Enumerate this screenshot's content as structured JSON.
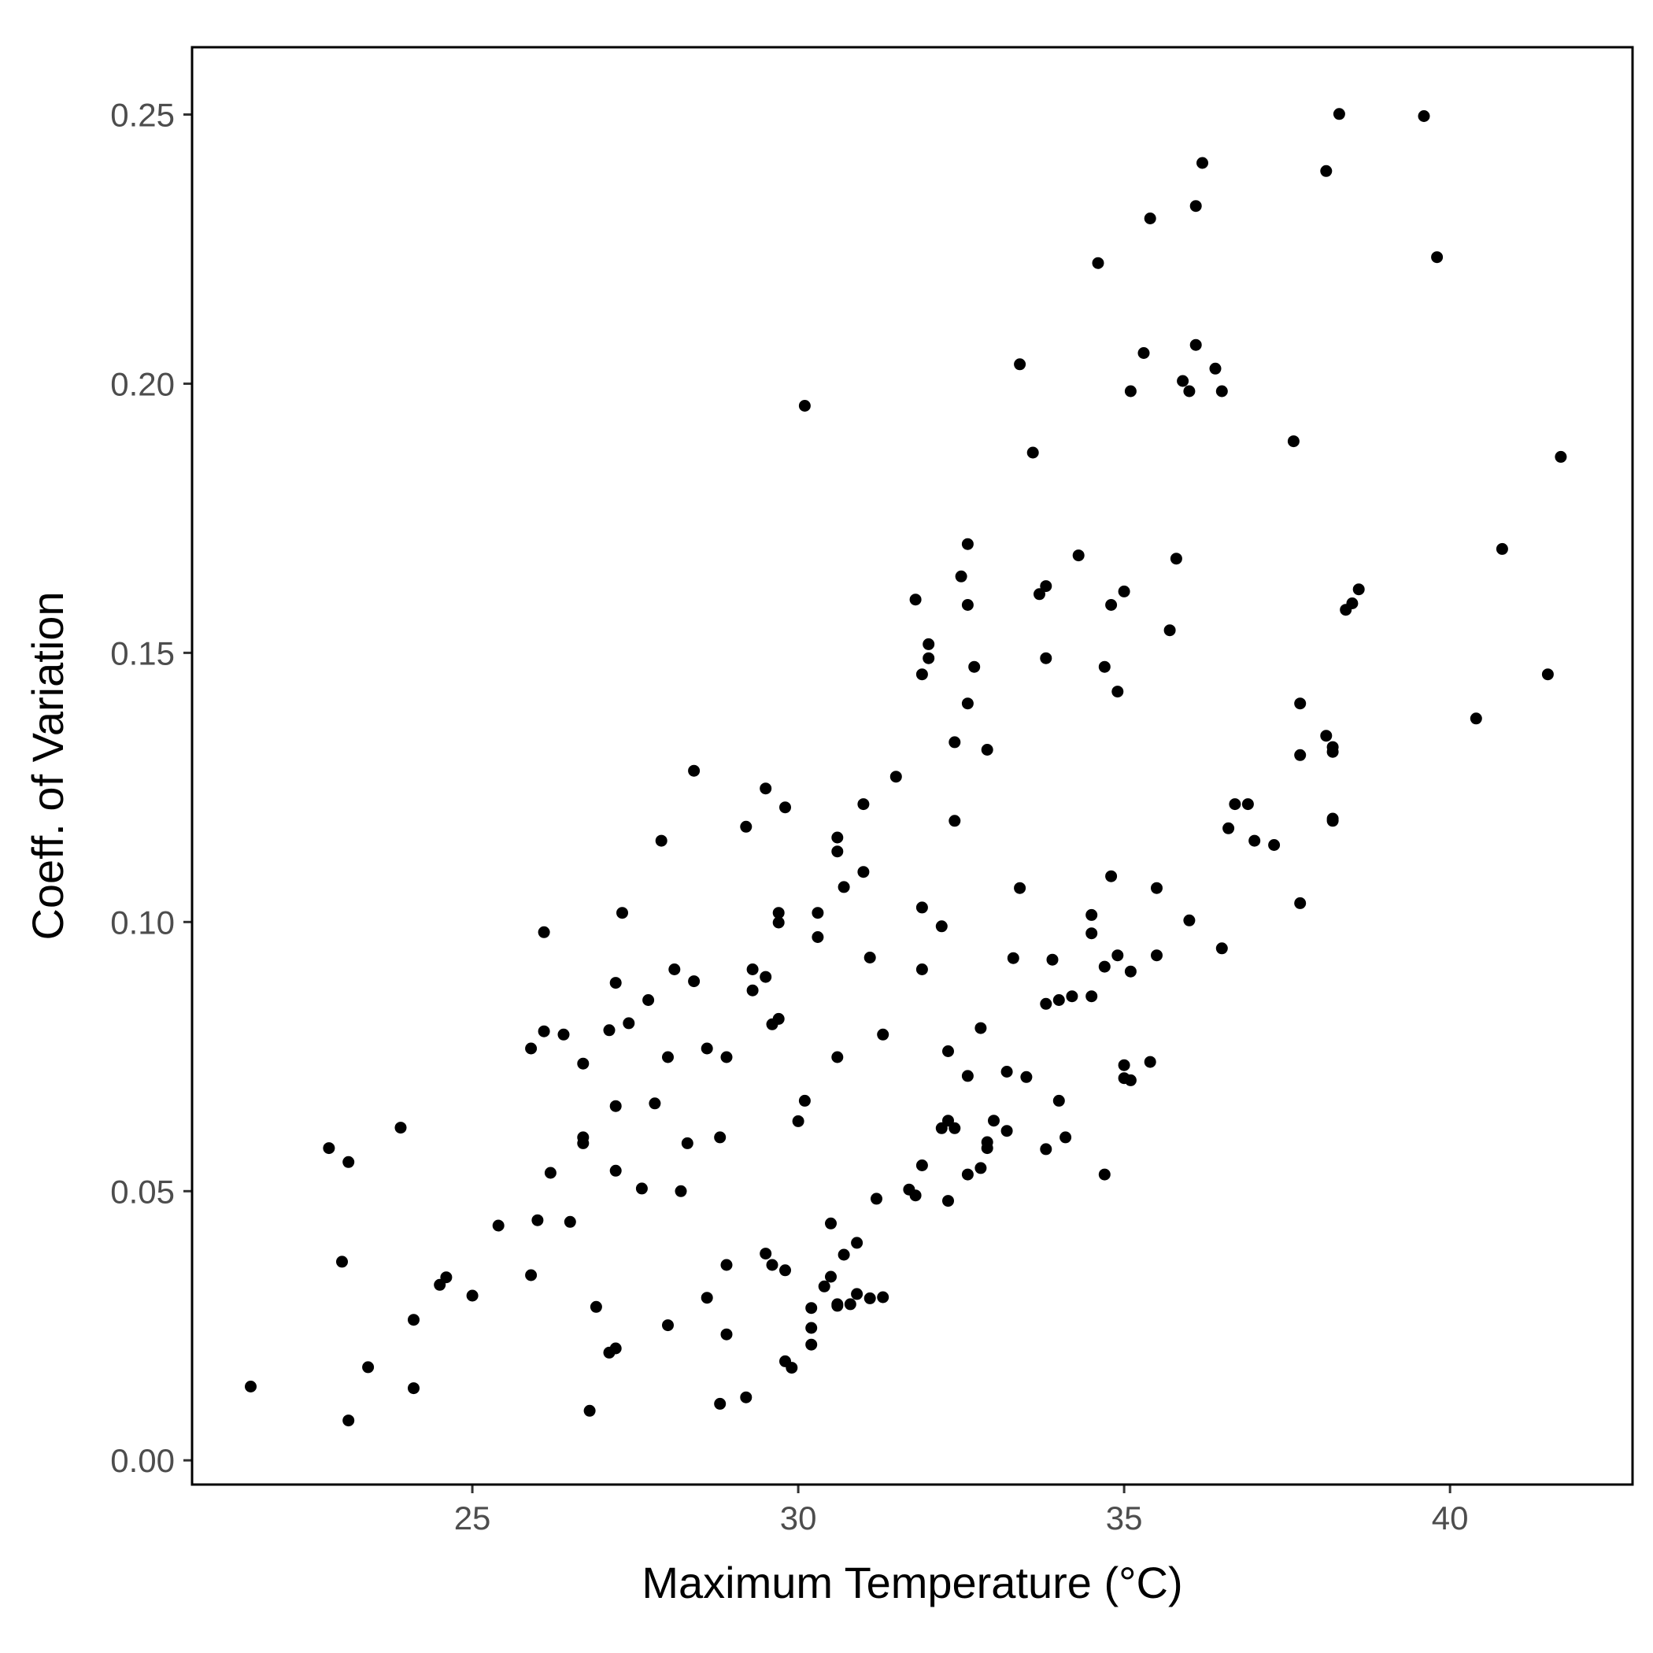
{
  "chart_data": {
    "type": "scatter",
    "title": "",
    "xlabel": "Maximum Temperature (°C)",
    "ylabel": "Coeff. of Variation",
    "xlim": [
      20.7,
      42.8
    ],
    "ylim": [
      -0.0045,
      0.2625
    ],
    "x_ticks": [
      25,
      30,
      35,
      40
    ],
    "x_tick_labels": [
      "25",
      "30",
      "35",
      "40"
    ],
    "y_ticks": [
      0.0,
      0.05,
      0.1,
      0.15,
      0.2,
      0.25
    ],
    "y_tick_labels": [
      "0.00",
      "0.05",
      "0.10",
      "0.15",
      "0.20",
      "0.25"
    ],
    "grid": false,
    "legend": "none",
    "point_color": "#000000",
    "series": [
      {
        "name": "",
        "points": [
          [
            21.6,
            0.0137
          ],
          [
            22.8,
            0.058
          ],
          [
            23.0,
            0.0369
          ],
          [
            23.1,
            0.0074
          ],
          [
            23.1,
            0.0554
          ],
          [
            23.4,
            0.0173
          ],
          [
            23.9,
            0.0618
          ],
          [
            24.1,
            0.0261
          ],
          [
            24.1,
            0.0134
          ],
          [
            24.5,
            0.0326
          ],
          [
            24.6,
            0.034
          ],
          [
            25.0,
            0.0306
          ],
          [
            25.4,
            0.0436
          ],
          [
            25.9,
            0.0765
          ],
          [
            25.9,
            0.0344
          ],
          [
            26.0,
            0.0446
          ],
          [
            26.1,
            0.0981
          ],
          [
            26.1,
            0.0797
          ],
          [
            26.2,
            0.0534
          ],
          [
            26.4,
            0.0791
          ],
          [
            26.5,
            0.0443
          ],
          [
            26.7,
            0.0589
          ],
          [
            26.7,
            0.06
          ],
          [
            26.7,
            0.0737
          ],
          [
            26.8,
            0.0092
          ],
          [
            26.9,
            0.0285
          ],
          [
            27.1,
            0.02
          ],
          [
            27.1,
            0.0799
          ],
          [
            27.2,
            0.0208
          ],
          [
            27.2,
            0.0538
          ],
          [
            27.2,
            0.0658
          ],
          [
            27.2,
            0.0887
          ],
          [
            27.3,
            0.1017
          ],
          [
            27.4,
            0.0812
          ],
          [
            27.6,
            0.0505
          ],
          [
            27.7,
            0.0855
          ],
          [
            27.8,
            0.0663
          ],
          [
            27.9,
            0.1151
          ],
          [
            28.0,
            0.0749
          ],
          [
            28.0,
            0.0251
          ],
          [
            28.1,
            0.0912
          ],
          [
            28.2,
            0.05
          ],
          [
            28.3,
            0.0589
          ],
          [
            28.4,
            0.089
          ],
          [
            28.4,
            0.1281
          ],
          [
            28.6,
            0.0765
          ],
          [
            28.6,
            0.0302
          ],
          [
            28.8,
            0.0105
          ],
          [
            28.8,
            0.06
          ],
          [
            28.9,
            0.0363
          ],
          [
            28.9,
            0.0234
          ],
          [
            28.9,
            0.0749
          ],
          [
            29.2,
            0.1177
          ],
          [
            29.2,
            0.0117
          ],
          [
            29.3,
            0.0873
          ],
          [
            29.3,
            0.0912
          ],
          [
            29.5,
            0.1248
          ],
          [
            29.5,
            0.0898
          ],
          [
            29.5,
            0.0384
          ],
          [
            29.6,
            0.081
          ],
          [
            29.6,
            0.0363
          ],
          [
            29.7,
            0.082
          ],
          [
            29.7,
            0.0999
          ],
          [
            29.7,
            0.1017
          ],
          [
            29.8,
            0.1213
          ],
          [
            29.8,
            0.0353
          ],
          [
            29.8,
            0.0184
          ],
          [
            29.9,
            0.0172
          ],
          [
            30.0,
            0.063
          ],
          [
            30.1,
            0.1959
          ],
          [
            30.1,
            0.0668
          ],
          [
            30.2,
            0.0283
          ],
          [
            30.2,
            0.0246
          ],
          [
            30.2,
            0.0215
          ],
          [
            30.3,
            0.0972
          ],
          [
            30.3,
            0.1017
          ],
          [
            30.4,
            0.0323
          ],
          [
            30.5,
            0.044
          ],
          [
            30.5,
            0.0341
          ],
          [
            30.6,
            0.1157
          ],
          [
            30.6,
            0.1131
          ],
          [
            30.6,
            0.0749
          ],
          [
            30.6,
            0.029
          ],
          [
            30.6,
            0.0287
          ],
          [
            30.7,
            0.0382
          ],
          [
            30.7,
            0.1065
          ],
          [
            30.8,
            0.029
          ],
          [
            30.9,
            0.0404
          ],
          [
            30.9,
            0.0309
          ],
          [
            31.0,
            0.1219
          ],
          [
            31.0,
            0.1093
          ],
          [
            31.1,
            0.0301
          ],
          [
            31.1,
            0.0934
          ],
          [
            31.2,
            0.0486
          ],
          [
            31.3,
            0.0303
          ],
          [
            31.3,
            0.0791
          ],
          [
            31.5,
            0.127
          ],
          [
            31.7,
            0.0503
          ],
          [
            31.8,
            0.0492
          ],
          [
            31.8,
            0.1599
          ],
          [
            31.9,
            0.146
          ],
          [
            31.9,
            0.1027
          ],
          [
            31.9,
            0.0912
          ],
          [
            31.9,
            0.0548
          ],
          [
            32.0,
            0.149
          ],
          [
            32.0,
            0.1516
          ],
          [
            32.2,
            0.0617
          ],
          [
            32.2,
            0.0992
          ],
          [
            32.3,
            0.0482
          ],
          [
            32.3,
            0.076
          ],
          [
            32.3,
            0.0631
          ],
          [
            32.4,
            0.1188
          ],
          [
            32.4,
            0.1334
          ],
          [
            32.4,
            0.0617
          ],
          [
            32.5,
            0.1642
          ],
          [
            32.6,
            0.1589
          ],
          [
            32.6,
            0.1702
          ],
          [
            32.6,
            0.1406
          ],
          [
            32.6,
            0.0714
          ],
          [
            32.6,
            0.0531
          ],
          [
            32.7,
            0.1474
          ],
          [
            32.8,
            0.0543
          ],
          [
            32.8,
            0.0803
          ],
          [
            32.9,
            0.132
          ],
          [
            32.9,
            0.0591
          ],
          [
            32.9,
            0.058
          ],
          [
            33.0,
            0.0631
          ],
          [
            33.2,
            0.0722
          ],
          [
            33.2,
            0.0612
          ],
          [
            33.3,
            0.0933
          ],
          [
            33.4,
            0.2036
          ],
          [
            33.4,
            0.1063
          ],
          [
            33.5,
            0.0712
          ],
          [
            33.6,
            0.1872
          ],
          [
            33.7,
            0.1609
          ],
          [
            33.8,
            0.1624
          ],
          [
            33.8,
            0.149
          ],
          [
            33.8,
            0.0848
          ],
          [
            33.8,
            0.0578
          ],
          [
            33.9,
            0.093
          ],
          [
            34.0,
            0.0668
          ],
          [
            34.0,
            0.0855
          ],
          [
            34.1,
            0.06
          ],
          [
            34.2,
            0.0862
          ],
          [
            34.3,
            0.1681
          ],
          [
            34.5,
            0.1013
          ],
          [
            34.5,
            0.0979
          ],
          [
            34.5,
            0.0862
          ],
          [
            34.6,
            0.2224
          ],
          [
            34.7,
            0.1474
          ],
          [
            34.7,
            0.0917
          ],
          [
            34.7,
            0.0531
          ],
          [
            34.8,
            0.1589
          ],
          [
            34.8,
            0.1085
          ],
          [
            34.9,
            0.1428
          ],
          [
            34.9,
            0.0938
          ],
          [
            35.0,
            0.1614
          ],
          [
            35.0,
            0.0734
          ],
          [
            35.0,
            0.071
          ],
          [
            35.1,
            0.1986
          ],
          [
            35.1,
            0.0908
          ],
          [
            35.1,
            0.0706
          ],
          [
            35.3,
            0.2057
          ],
          [
            35.4,
            0.074
          ],
          [
            35.4,
            0.2307
          ],
          [
            35.5,
            0.1063
          ],
          [
            35.5,
            0.0938
          ],
          [
            35.7,
            0.1542
          ],
          [
            35.8,
            0.1675
          ],
          [
            35.9,
            0.2005
          ],
          [
            36.0,
            0.1986
          ],
          [
            36.0,
            0.1003
          ],
          [
            36.1,
            0.233
          ],
          [
            36.1,
            0.2072
          ],
          [
            36.2,
            0.241
          ],
          [
            36.4,
            0.2028
          ],
          [
            36.5,
            0.1986
          ],
          [
            36.5,
            0.0951
          ],
          [
            36.6,
            0.1174
          ],
          [
            36.7,
            0.1219
          ],
          [
            36.9,
            0.1219
          ],
          [
            37.0,
            0.1151
          ],
          [
            37.3,
            0.1143
          ],
          [
            37.6,
            0.1893
          ],
          [
            37.7,
            0.1406
          ],
          [
            37.7,
            0.131
          ],
          [
            37.7,
            0.1035
          ],
          [
            38.1,
            0.2395
          ],
          [
            38.1,
            0.1346
          ],
          [
            38.2,
            0.1325
          ],
          [
            38.2,
            0.1316
          ],
          [
            38.2,
            0.1192
          ],
          [
            38.2,
            0.1188
          ],
          [
            38.3,
            0.2501
          ],
          [
            38.4,
            0.158
          ],
          [
            38.5,
            0.1592
          ],
          [
            38.6,
            0.1618
          ],
          [
            39.6,
            0.2497
          ],
          [
            39.8,
            0.2235
          ],
          [
            40.4,
            0.1378
          ],
          [
            40.8,
            0.1693
          ],
          [
            41.5,
            0.146
          ],
          [
            41.7,
            0.1864
          ]
        ]
      }
    ]
  }
}
